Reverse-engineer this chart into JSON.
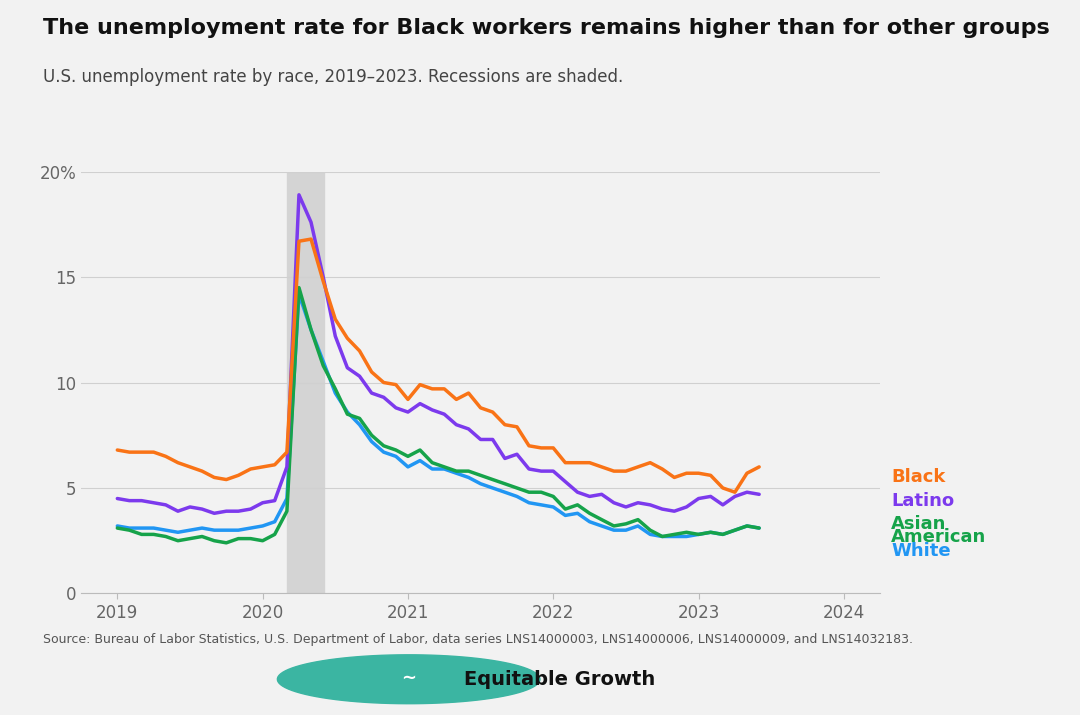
{
  "title": "The unemployment rate for Black workers remains higher than for other groups",
  "subtitle": "U.S. unemployment rate by race, 2019–2023. Recessions are shaded.",
  "source": "Source: Bureau of Labor Statistics, U.S. Department of Labor, data series LNS14000003, LNS14000006, LNS14000009, and LNS14032183.",
  "recession_start": 2020.17,
  "recession_end": 2020.42,
  "ylim": [
    0,
    20
  ],
  "yticks": [
    0,
    5,
    10,
    15,
    20
  ],
  "ytick_labels": [
    "0",
    "5",
    "10",
    "15",
    "20%"
  ],
  "xticks": [
    2019,
    2020,
    2021,
    2022,
    2023,
    2024
  ],
  "xlim_start": 2018.75,
  "xlim_end": 2024.25,
  "colors": {
    "Black": "#f97316",
    "Latino": "#7c3aed",
    "Asian American": "#16a34a",
    "White": "#2196f3"
  },
  "background": "#f2f2f2",
  "data": {
    "dates": [
      2019.0,
      2019.083,
      2019.167,
      2019.25,
      2019.333,
      2019.417,
      2019.5,
      2019.583,
      2019.667,
      2019.75,
      2019.833,
      2019.917,
      2020.0,
      2020.083,
      2020.167,
      2020.25,
      2020.333,
      2020.417,
      2020.5,
      2020.583,
      2020.667,
      2020.75,
      2020.833,
      2020.917,
      2021.0,
      2021.083,
      2021.167,
      2021.25,
      2021.333,
      2021.417,
      2021.5,
      2021.583,
      2021.667,
      2021.75,
      2021.833,
      2021.917,
      2022.0,
      2022.083,
      2022.167,
      2022.25,
      2022.333,
      2022.417,
      2022.5,
      2022.583,
      2022.667,
      2022.75,
      2022.833,
      2022.917,
      2023.0,
      2023.083,
      2023.167,
      2023.25,
      2023.333,
      2023.417
    ],
    "values_black": [
      6.8,
      6.7,
      6.7,
      6.7,
      6.5,
      6.2,
      6.0,
      5.8,
      5.5,
      5.4,
      5.6,
      5.9,
      6.0,
      6.1,
      6.7,
      16.7,
      16.8,
      14.8,
      13.0,
      12.1,
      11.5,
      10.5,
      10.0,
      9.9,
      9.2,
      9.9,
      9.7,
      9.7,
      9.2,
      9.5,
      8.8,
      8.6,
      8.0,
      7.9,
      7.0,
      6.9,
      6.9,
      6.2,
      6.2,
      6.2,
      6.0,
      5.8,
      5.8,
      6.0,
      6.2,
      5.9,
      5.5,
      5.7,
      5.7,
      5.6,
      5.0,
      4.8,
      5.7,
      6.0
    ],
    "values_latino": [
      4.5,
      4.4,
      4.4,
      4.3,
      4.2,
      3.9,
      4.1,
      4.0,
      3.8,
      3.9,
      3.9,
      4.0,
      4.3,
      4.4,
      6.0,
      18.9,
      17.6,
      15.0,
      12.2,
      10.7,
      10.3,
      9.5,
      9.3,
      8.8,
      8.6,
      9.0,
      8.7,
      8.5,
      8.0,
      7.8,
      7.3,
      7.3,
      6.4,
      6.6,
      5.9,
      5.8,
      5.8,
      5.3,
      4.8,
      4.6,
      4.7,
      4.3,
      4.1,
      4.3,
      4.2,
      4.0,
      3.9,
      4.1,
      4.5,
      4.6,
      4.2,
      4.6,
      4.8,
      4.7
    ],
    "values_asian": [
      3.1,
      3.0,
      2.8,
      2.8,
      2.7,
      2.5,
      2.6,
      2.7,
      2.5,
      2.4,
      2.6,
      2.6,
      2.5,
      2.8,
      3.9,
      14.5,
      12.5,
      10.8,
      9.7,
      8.5,
      8.3,
      7.5,
      7.0,
      6.8,
      6.5,
      6.8,
      6.2,
      6.0,
      5.8,
      5.8,
      5.6,
      5.4,
      5.2,
      5.0,
      4.8,
      4.8,
      4.6,
      4.0,
      4.2,
      3.8,
      3.5,
      3.2,
      3.3,
      3.5,
      3.0,
      2.7,
      2.8,
      2.9,
      2.8,
      2.9,
      2.8,
      3.0,
      3.2,
      3.1
    ],
    "values_white": [
      3.2,
      3.1,
      3.1,
      3.1,
      3.0,
      2.9,
      3.0,
      3.1,
      3.0,
      3.0,
      3.0,
      3.1,
      3.2,
      3.4,
      4.5,
      14.2,
      12.5,
      11.0,
      9.5,
      8.6,
      8.0,
      7.2,
      6.7,
      6.5,
      6.0,
      6.3,
      5.9,
      5.9,
      5.7,
      5.5,
      5.2,
      5.0,
      4.8,
      4.6,
      4.3,
      4.2,
      4.1,
      3.7,
      3.8,
      3.4,
      3.2,
      3.0,
      3.0,
      3.2,
      2.8,
      2.7,
      2.7,
      2.7,
      2.8,
      2.9,
      2.8,
      3.0,
      3.2,
      3.1
    ]
  }
}
